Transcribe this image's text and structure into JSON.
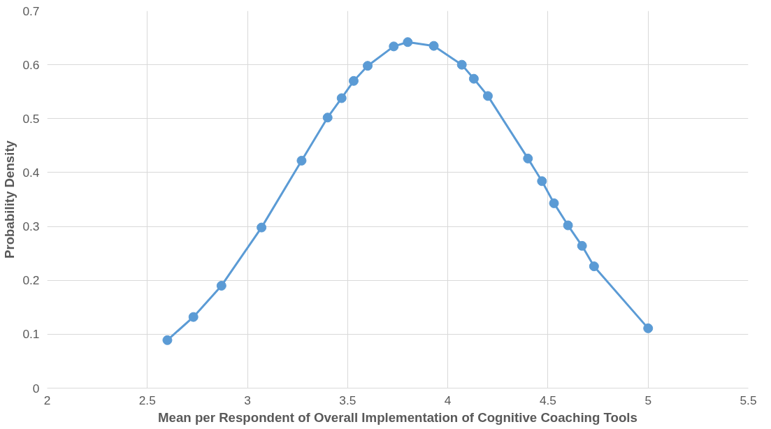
{
  "chart_data": {
    "type": "line",
    "xlabel": "Mean per Respondent of Overall Implementation of Cognitive Coaching Tools",
    "ylabel": "Probability Density",
    "x": [
      2.6,
      2.73,
      2.87,
      3.07,
      3.27,
      3.4,
      3.47,
      3.53,
      3.6,
      3.73,
      3.8,
      3.93,
      4.07,
      4.13,
      4.2,
      4.4,
      4.47,
      4.53,
      4.6,
      4.67,
      4.73,
      5.0
    ],
    "series": [
      {
        "color": "#5b9bd5",
        "values": [
          0.089,
          0.132,
          0.19,
          0.298,
          0.422,
          0.502,
          0.538,
          0.57,
          0.598,
          0.634,
          0.642,
          0.635,
          0.6,
          0.574,
          0.542,
          0.426,
          0.384,
          0.343,
          0.302,
          0.264,
          0.226,
          0.111
        ]
      }
    ],
    "xlim": [
      2,
      5.5
    ],
    "xticks": [
      2,
      2.5,
      3,
      3.5,
      4,
      4.5,
      5,
      5.5
    ],
    "ylim": [
      0,
      0.7
    ],
    "yticks": [
      0,
      0.1,
      0.2,
      0.3,
      0.4,
      0.5,
      0.6,
      0.7
    ],
    "grid": true,
    "marker": "circle",
    "line_style": "solid"
  }
}
